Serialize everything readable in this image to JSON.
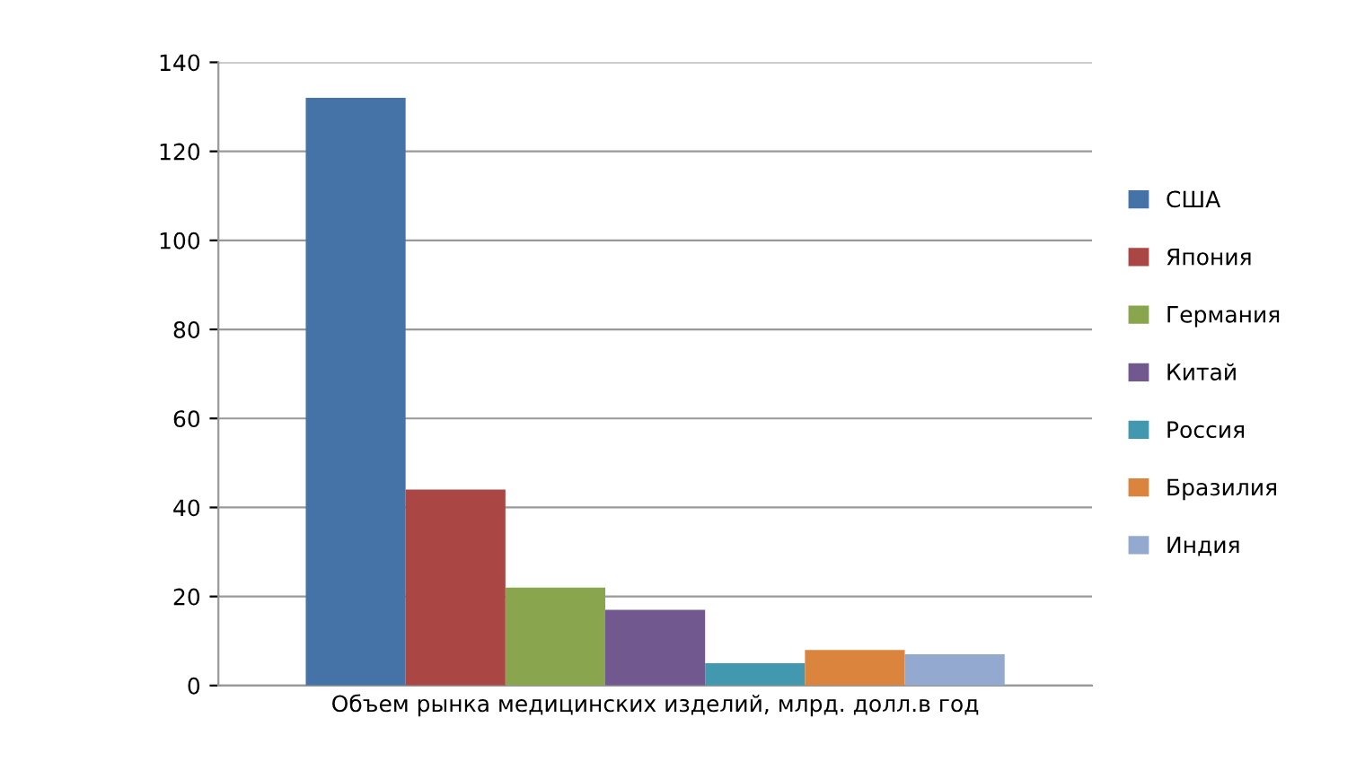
{
  "chart_data": {
    "type": "bar",
    "categories": [
      "Объем рынка медицинских изделий, млрд. долл.в год"
    ],
    "series": [
      {
        "name": "США",
        "color": "#4572a7",
        "values": [
          132
        ]
      },
      {
        "name": "Япония",
        "color": "#aa4643",
        "values": [
          44
        ]
      },
      {
        "name": "Германия",
        "color": "#89a54e",
        "values": [
          22
        ]
      },
      {
        "name": "Китай",
        "color": "#71588f",
        "values": [
          17
        ]
      },
      {
        "name": "Россия",
        "color": "#4198af",
        "values": [
          5
        ]
      },
      {
        "name": "Бразилия",
        "color": "#db843d",
        "values": [
          8
        ]
      },
      {
        "name": "Индия",
        "color": "#93a9cf",
        "values": [
          7
        ]
      }
    ],
    "ylim": [
      0,
      140
    ],
    "yticks": [
      0,
      20,
      40,
      60,
      80,
      100,
      120,
      140
    ],
    "grid": "y",
    "legend": "right"
  }
}
